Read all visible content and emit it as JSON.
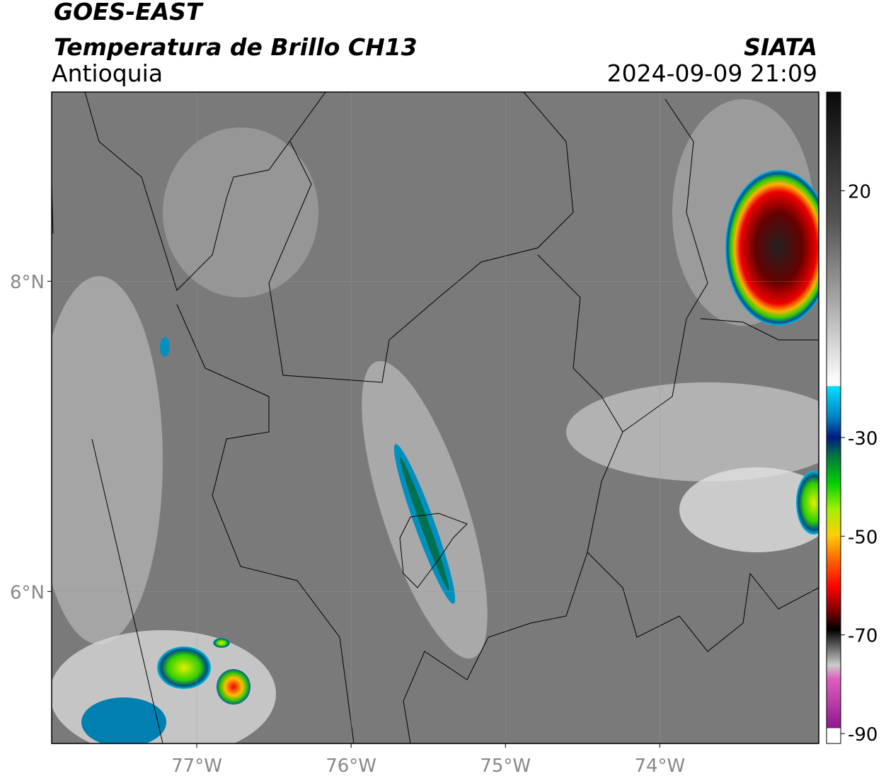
{
  "header": {
    "title": "GOES-EAST",
    "subtitle": "Temperatura de Brillo CH13",
    "region": "Antioquia",
    "source": "SIATA",
    "datetime": "2024-09-09 21:09"
  },
  "map": {
    "xlim": [
      -77.94,
      -72.97
    ],
    "xticks": [
      {
        "value": -77,
        "label": "77°W"
      },
      {
        "value": -76,
        "label": "76°W"
      },
      {
        "value": -75,
        "label": "75°W"
      },
      {
        "value": -74,
        "label": "74°W"
      }
    ],
    "ylim": [
      5.02,
      9.22
    ],
    "yticks": [
      {
        "value": 6,
        "label": "6°N"
      },
      {
        "value": 8,
        "label": "8°N"
      }
    ]
  },
  "colorbar": {
    "lim": [
      -92,
      40
    ],
    "ticks": [
      20,
      -30,
      -50,
      -70,
      -90
    ]
  }
}
